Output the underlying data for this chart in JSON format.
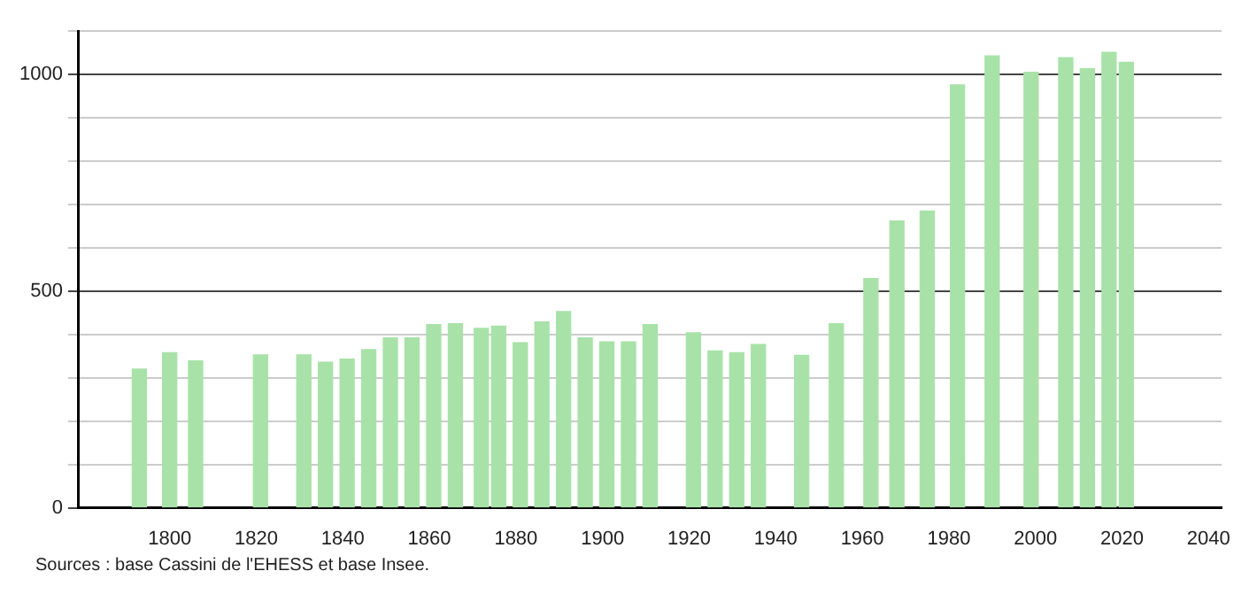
{
  "chart_data": {
    "type": "bar",
    "annotations": [
      "Sources : base Cassini de l'EHESS et base Insee."
    ],
    "x": [
      1793,
      1800,
      1806,
      1821,
      1831,
      1836,
      1841,
      1846,
      1851,
      1856,
      1861,
      1866,
      1872,
      1876,
      1881,
      1886,
      1891,
      1896,
      1901,
      1906,
      1911,
      1921,
      1926,
      1931,
      1936,
      1946,
      1954,
      1962,
      1968,
      1975,
      1982,
      1990,
      1999,
      2007,
      2012,
      2017,
      2021
    ],
    "values": [
      320,
      358,
      339,
      353,
      353,
      336,
      343,
      365,
      392,
      392,
      423,
      425,
      414,
      419,
      381,
      429,
      453,
      392,
      383,
      383,
      423,
      404,
      362,
      358,
      377,
      352,
      425,
      529,
      662,
      685,
      976,
      1043,
      1005,
      1039,
      1013,
      1051,
      1028
    ],
    "color": "#a8e2a8",
    "xlim": [
      1779,
      2043
    ],
    "xticks": [
      1800,
      1820,
      1840,
      1860,
      1880,
      1900,
      1920,
      1940,
      1960,
      1980,
      2000,
      2020,
      2040
    ],
    "ylim": [
      0,
      1100
    ],
    "yticks": [
      0,
      {
        "value": 100,
        "label": null
      },
      {
        "value": 200,
        "label": null
      },
      {
        "value": 300,
        "label": null
      },
      {
        "value": 400,
        "label": null
      },
      500,
      {
        "value": 600,
        "label": null
      },
      {
        "value": 700,
        "label": null
      },
      {
        "value": 800,
        "label": null
      },
      {
        "value": 900,
        "label": null
      },
      1000,
      {
        "value": 1100,
        "label": null
      }
    ],
    "grid": "y"
  }
}
